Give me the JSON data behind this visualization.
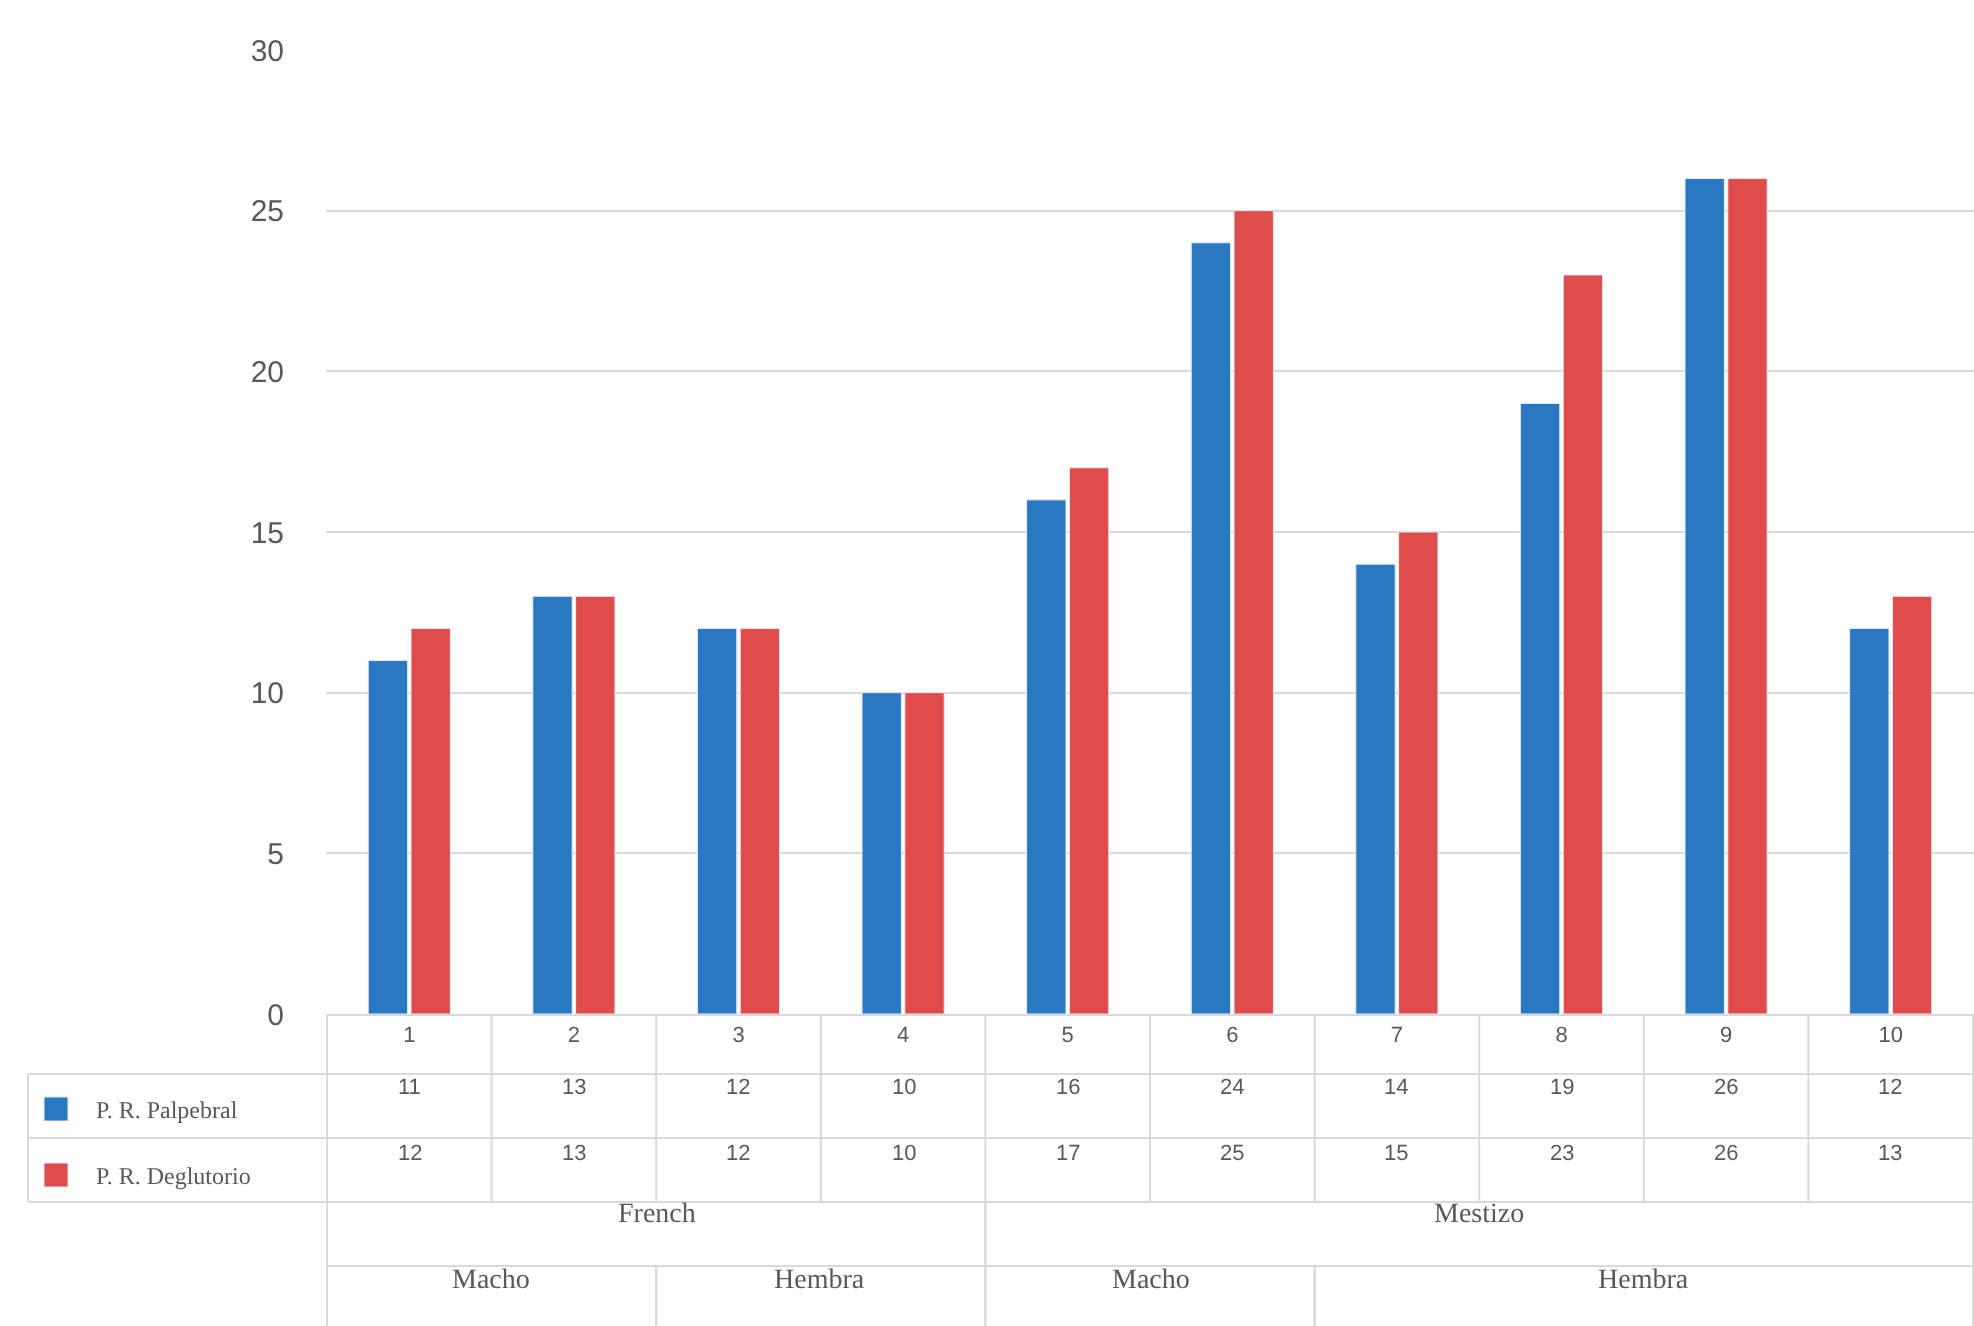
{
  "chart_data": {
    "type": "bar",
    "categories": [
      "1",
      "2",
      "3",
      "4",
      "5",
      "6",
      "7",
      "8",
      "9",
      "10"
    ],
    "series": [
      {
        "name": "P. R. Palpebral",
        "color": "#2a78c2",
        "values": [
          11,
          13,
          12,
          10,
          16,
          24,
          14,
          19,
          26,
          12
        ]
      },
      {
        "name": "P. R. Deglutorio",
        "color": "#e04b4b",
        "values": [
          12,
          13,
          12,
          10,
          17,
          25,
          15,
          23,
          26,
          13
        ]
      }
    ],
    "annotations": [
      "French",
      "Mestizo",
      "Macho",
      "Hembra",
      "Macho",
      "Hembra"
    ],
    "ylim": [
      0,
      30
    ],
    "yticks": [
      0,
      5,
      10,
      15,
      20,
      25,
      30
    ],
    "grid": "y",
    "data_labels": true,
    "legend": "bottom left"
  }
}
